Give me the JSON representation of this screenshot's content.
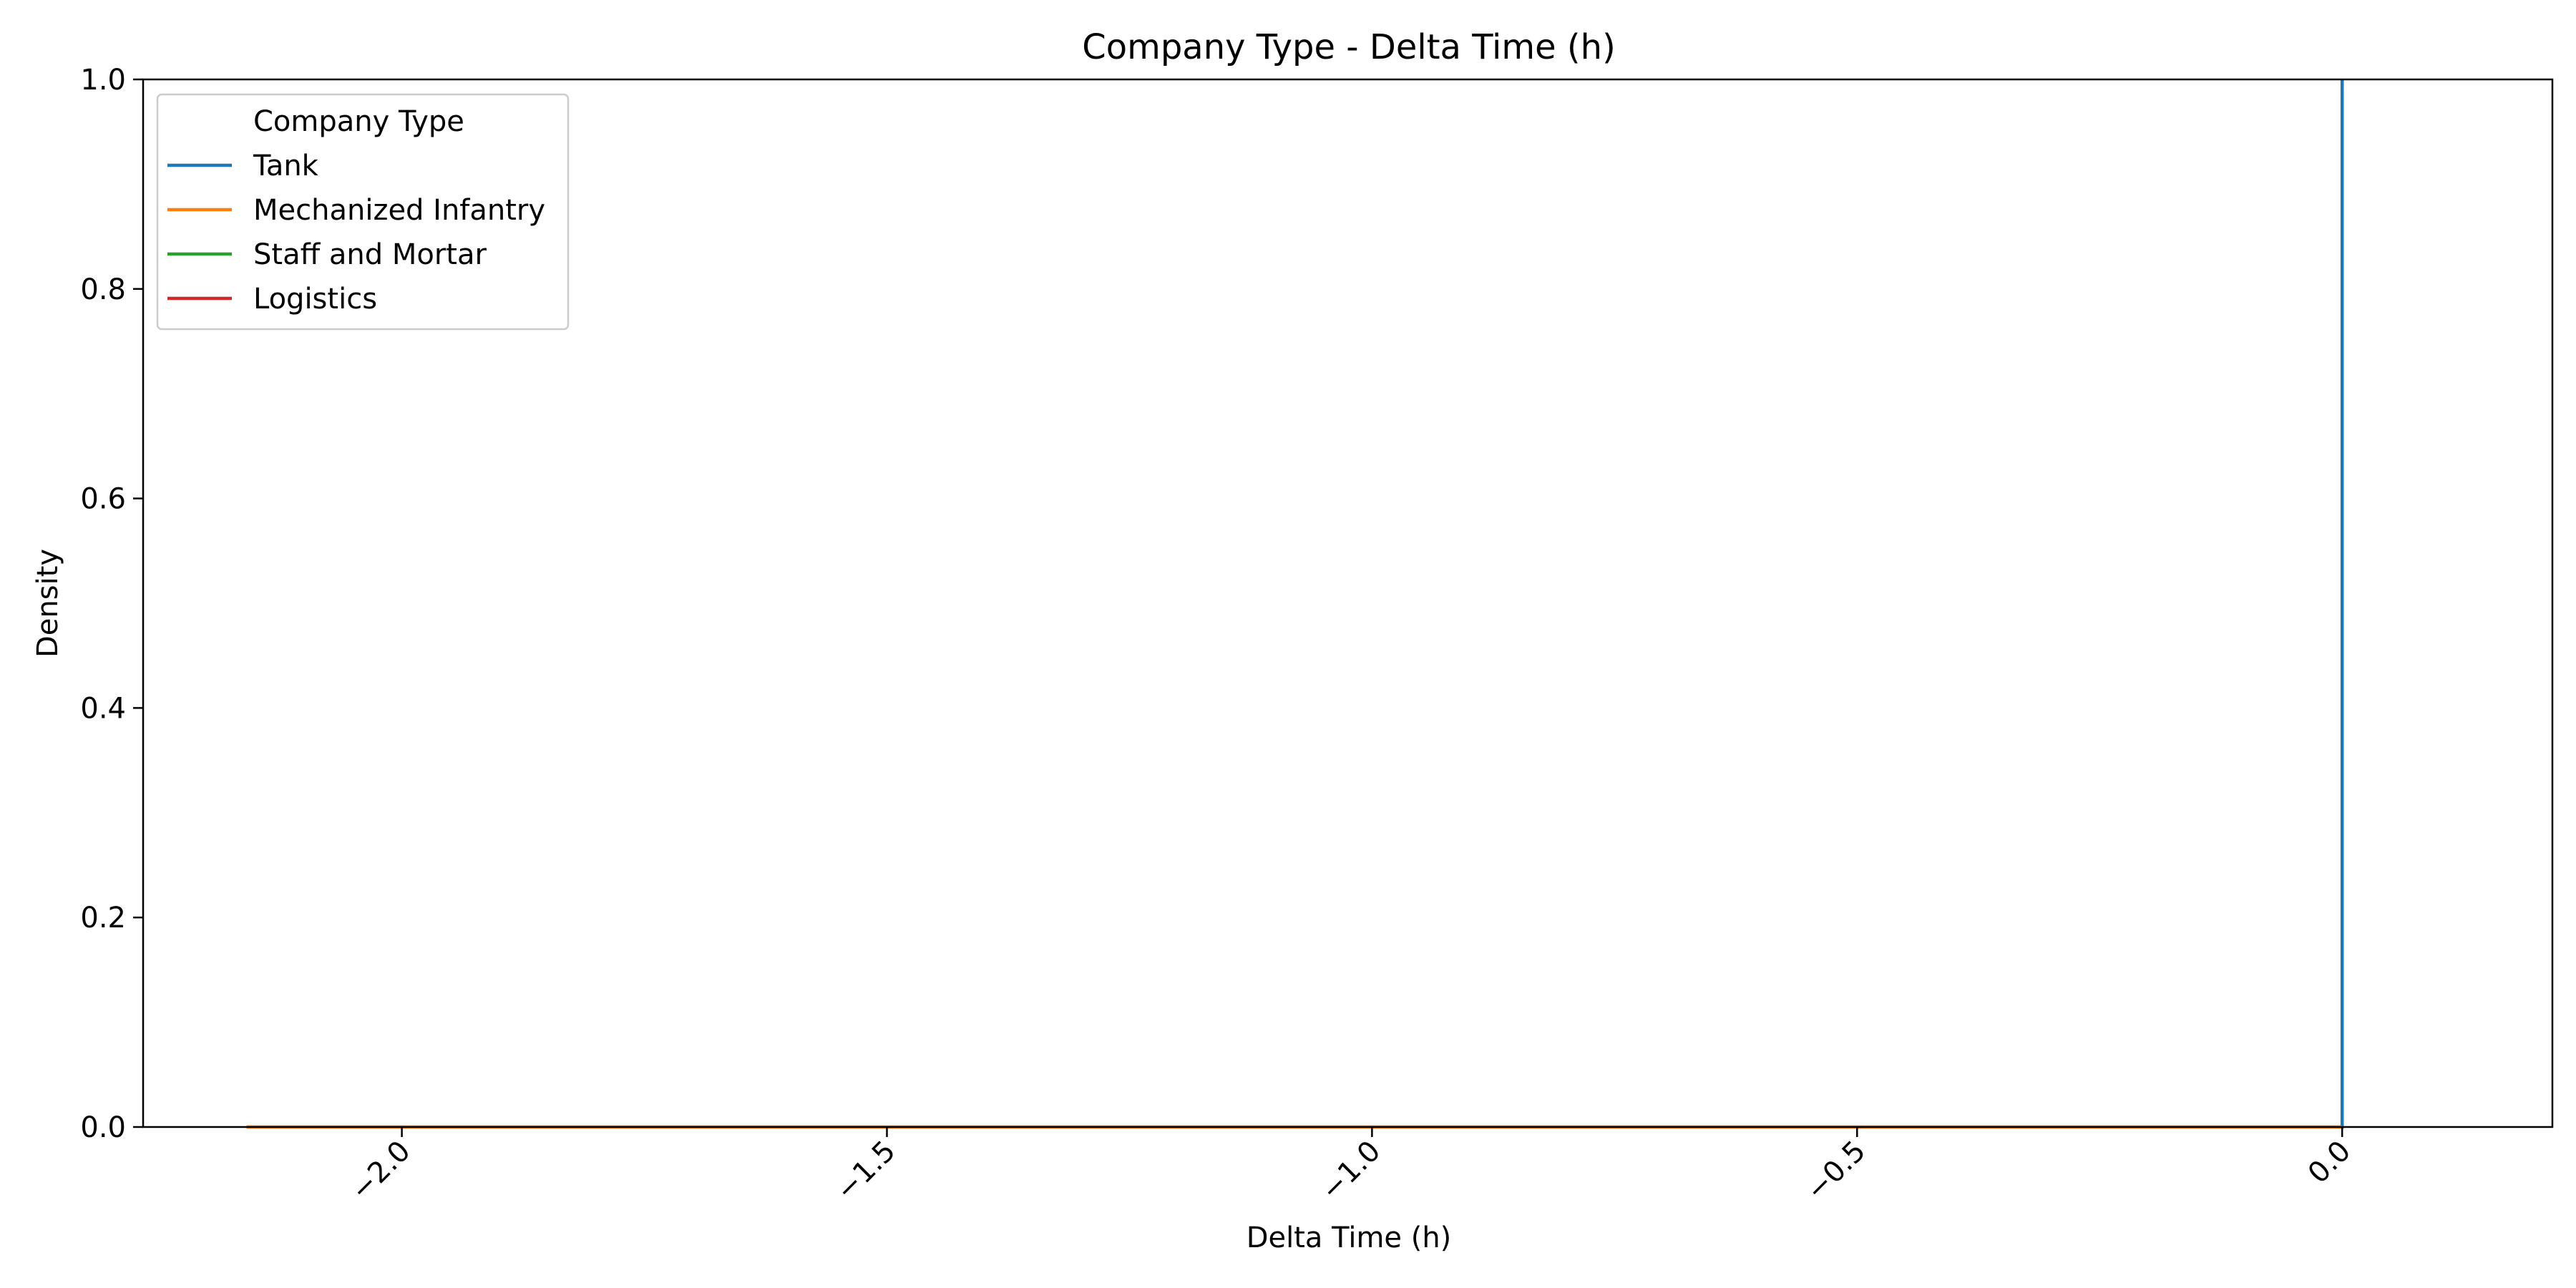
{
  "chart_data": {
    "type": "line",
    "title": "Company Type - Delta Time (h)",
    "xlabel": "Delta Time (h)",
    "ylabel": "Density",
    "xlim": [
      -2.2667,
      0.2167
    ],
    "ylim": [
      0,
      1.0
    ],
    "xticks": [
      -2.0,
      -1.5,
      -1.0,
      -0.5,
      0.0
    ],
    "xtick_labels": [
      "−2.0",
      "−1.5",
      "−1.0",
      "−0.5",
      "0.0"
    ],
    "xtick_rotation_deg": 45,
    "yticks": [
      0.0,
      0.2,
      0.4,
      0.6,
      0.8,
      1.0
    ],
    "ytick_labels": [
      "0.0",
      "0.2",
      "0.4",
      "0.6",
      "0.8",
      "1.0"
    ],
    "grid": false,
    "legend": {
      "title": "Company Type",
      "placement": "top-left"
    },
    "series": [
      {
        "name": "Tank",
        "color": "#1f77b4",
        "points": [
          [
            -2.16,
            0.0
          ],
          [
            0.0,
            0.0
          ],
          [
            0.0,
            1.0
          ]
        ]
      },
      {
        "name": "Mechanized Infantry",
        "color": "#ff7f0e",
        "points": [
          [
            -2.16,
            0.0
          ],
          [
            0.0,
            0.0
          ]
        ]
      },
      {
        "name": "Staff and Mortar",
        "color": "#2ca02c",
        "points": []
      },
      {
        "name": "Logistics",
        "color": "#d62728",
        "points": []
      }
    ]
  }
}
